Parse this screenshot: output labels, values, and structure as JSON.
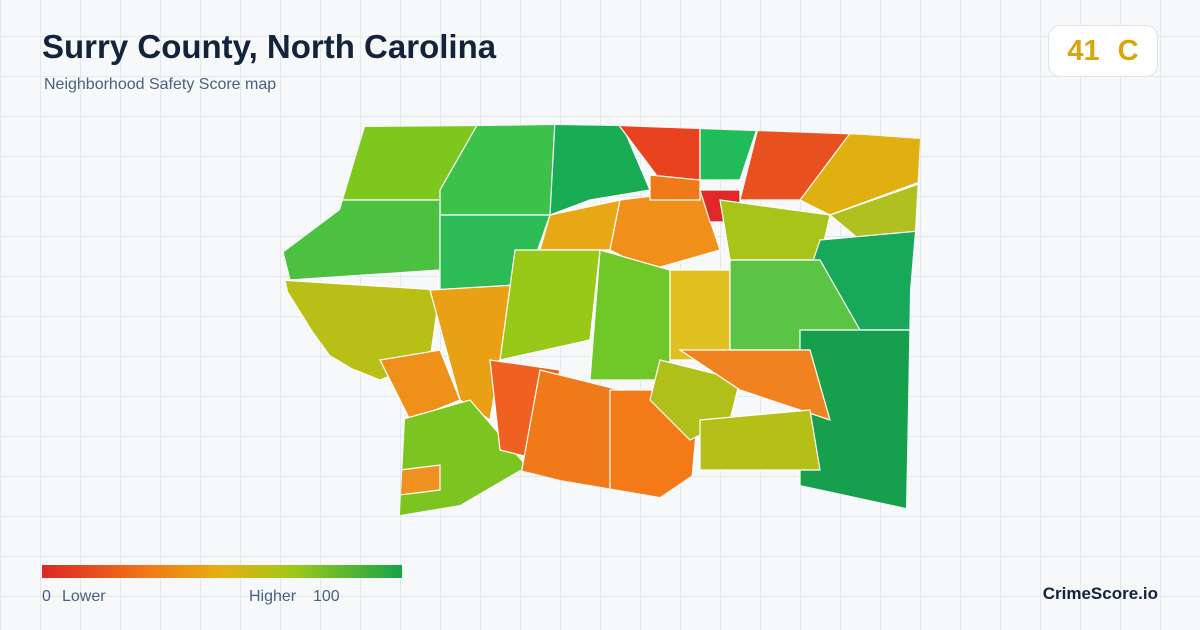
{
  "header": {
    "title": "Surry County, North Carolina",
    "subtitle": "Neighborhood Safety Score map"
  },
  "score": {
    "value": 41,
    "grade": "C"
  },
  "legend": {
    "min": 0,
    "min_label": "Lower",
    "max_label": "Higher",
    "max": 100
  },
  "footer": {
    "brand": "CrimeScore.io"
  }
}
